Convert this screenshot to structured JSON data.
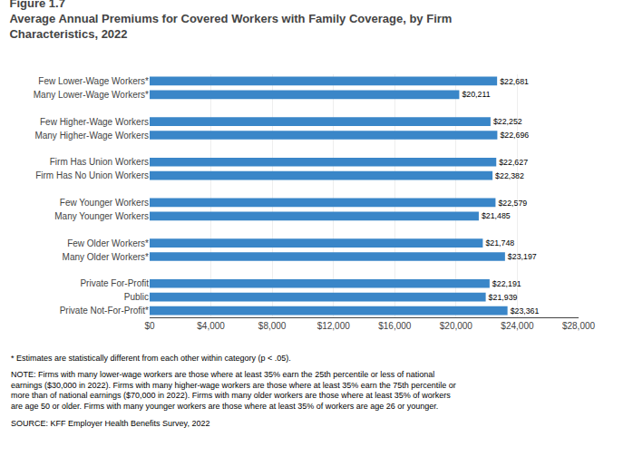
{
  "chart_data": {
    "type": "bar",
    "orientation": "horizontal",
    "title": "Figure 1.7",
    "subtitle": "Average Annual Premiums for Covered Workers with Family Coverage, by Firm\nCharacteristics, 2022",
    "categories": [
      "Few Lower-Wage Workers*",
      "Many Lower-Wage Workers*",
      null,
      "Few Higher-Wage Workers",
      "Many Higher-Wage Workers",
      null,
      "Firm Has Union Workers",
      "Firm Has No Union Workers",
      null,
      "Few Younger Workers",
      "Many Younger Workers",
      null,
      "Few Older Workers*",
      "Many Older Workers*",
      null,
      "Private For-Profit",
      "Public",
      "Private Not-For-Profit*"
    ],
    "values": [
      22681,
      20211,
      null,
      22252,
      22696,
      null,
      22627,
      22382,
      null,
      22579,
      21485,
      null,
      21748,
      23197,
      null,
      22191,
      21939,
      23361
    ],
    "value_labels": [
      "$22,681",
      "$20,211",
      null,
      "$22,252",
      "$22,696",
      null,
      "$22,627",
      "$22,382",
      null,
      "$22,579",
      "$21,485",
      null,
      "$21,748",
      "$23,197",
      null,
      "$22,191",
      "$21,939",
      "$23,361"
    ],
    "data_labels": true,
    "color": "#3a86c8",
    "xlim": [
      0,
      28000
    ],
    "xticks": [
      {
        "value": 0,
        "label": "$0"
      },
      {
        "value": 4000,
        "label": "$4,000"
      },
      {
        "value": 8000,
        "label": "$8,000"
      },
      {
        "value": 12000,
        "label": "$12,000"
      },
      {
        "value": 16000,
        "label": "$16,000"
      },
      {
        "value": 20000,
        "label": "$20,000"
      },
      {
        "value": 24000,
        "label": "$24,000"
      },
      {
        "value": 28000,
        "label": "$28,000"
      }
    ],
    "grid": true,
    "annotations": [
      "* Estimates are statistically different from each other within category (p < .05).",
      "NOTE: Firms with many lower-wage workers are those where at least 35% earn the 25th percentile or less of national earnings ($30,000 in 2022). Firms with many higher-wage workers are those where at least 35% earn the 75th percentile or more than of national earnings ($70,000 in 2022). Firms with many older workers are those where at least 35% of workers are age 50 or older. Firms with many younger workers are those where at least 35% of workers are age 26 or younger.",
      "SOURCE: KFF Employer Health Benefits Survey, 2022"
    ]
  }
}
